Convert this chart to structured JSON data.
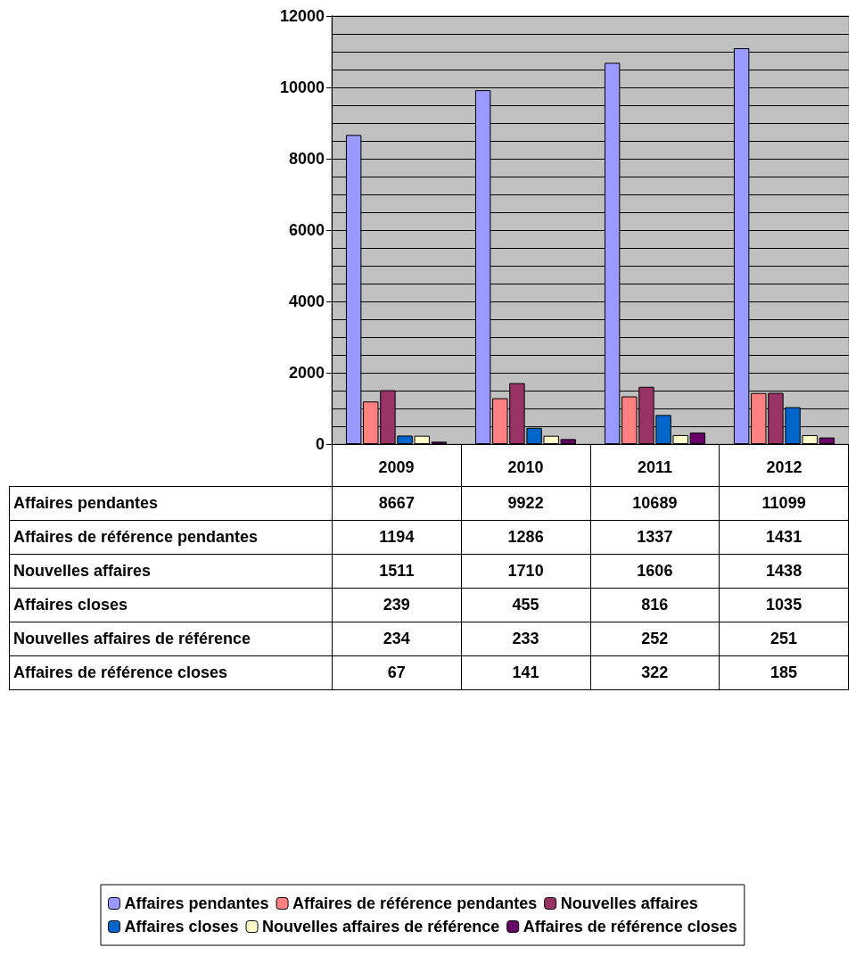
{
  "chart_data": {
    "type": "bar",
    "categories": [
      "2009",
      "2010",
      "2011",
      "2012"
    ],
    "series": [
      {
        "name": "Affaires pendantes",
        "color": "#9999ff",
        "values": [
          8667,
          9922,
          10689,
          11099
        ]
      },
      {
        "name": "Affaires de référence pendantes",
        "color": "#ff8080",
        "values": [
          1194,
          1286,
          1337,
          1431
        ]
      },
      {
        "name": "Nouvelles affaires",
        "color": "#993366",
        "values": [
          1511,
          1710,
          1606,
          1438
        ]
      },
      {
        "name": "Affaires closes",
        "color": "#0066cc",
        "values": [
          239,
          455,
          816,
          1035
        ]
      },
      {
        "name": "Nouvelles affaires de référence",
        "color": "#ffffcc",
        "values": [
          234,
          233,
          252,
          251
        ]
      },
      {
        "name": "Affaires de référence closes",
        "color": "#660066",
        "values": [
          67,
          141,
          322,
          185
        ]
      }
    ],
    "ylim": [
      0,
      12000
    ],
    "yticks": [
      0,
      2000,
      4000,
      6000,
      8000,
      10000,
      12000
    ],
    "grid": true,
    "data_labels": true,
    "legend": "bottom"
  }
}
